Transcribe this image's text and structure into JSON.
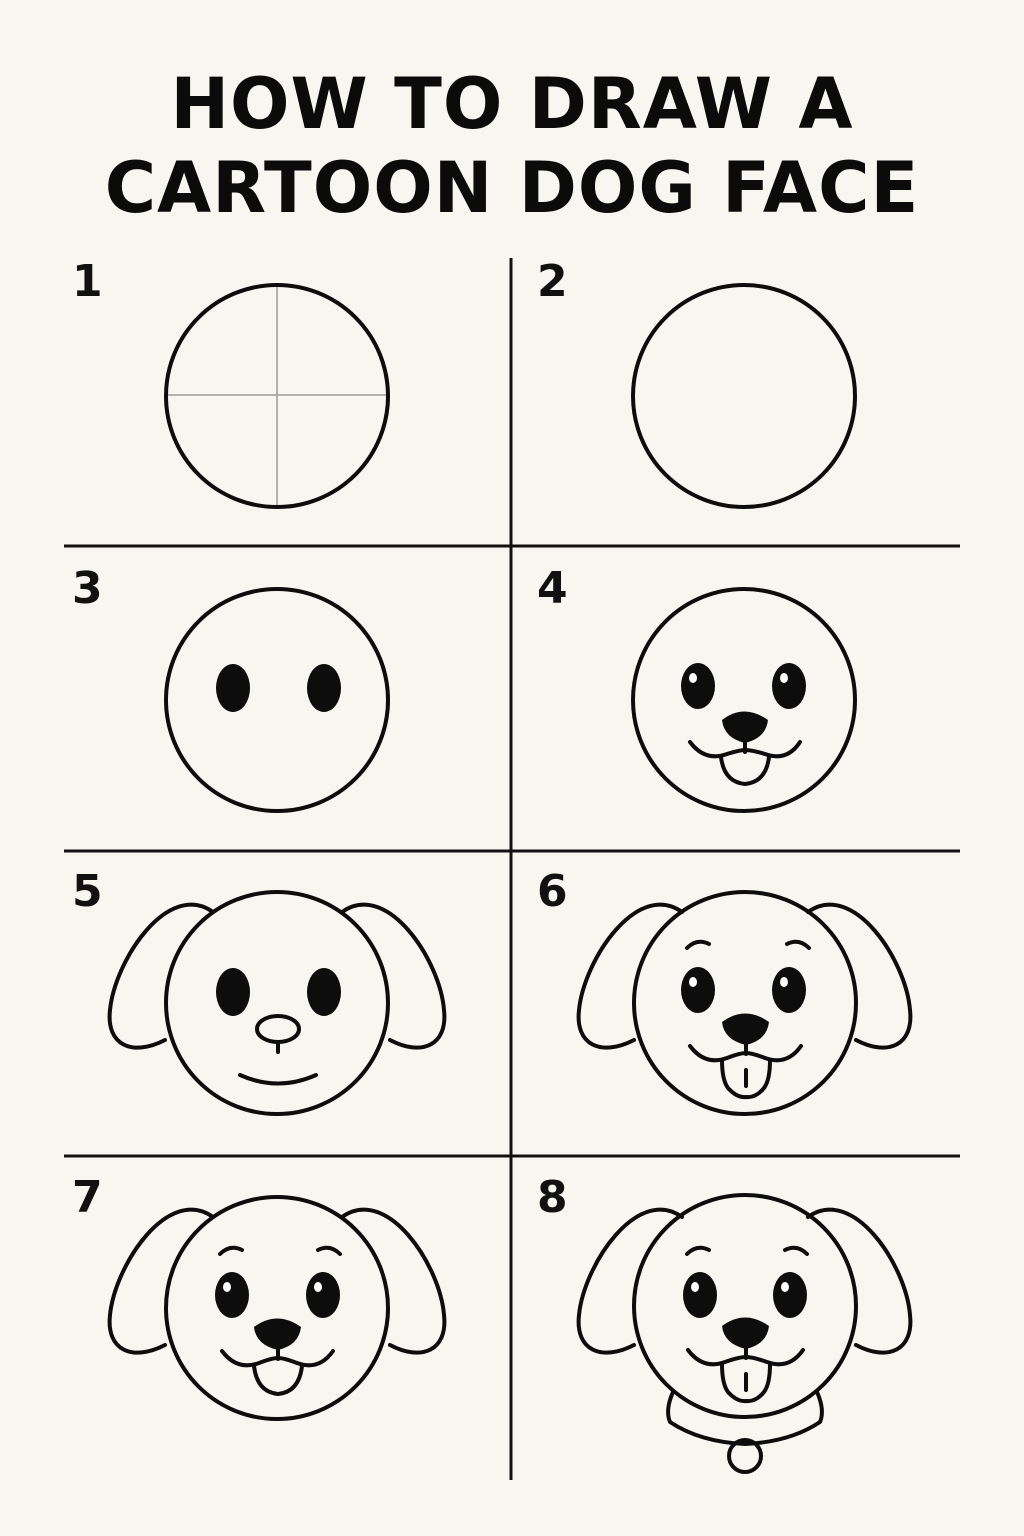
{
  "title": {
    "line1": "HOW TO DRAW A",
    "line2": "CARTOON DOG FACE"
  },
  "steps": [
    "1",
    "2",
    "3",
    "4",
    "5",
    "6",
    "7",
    "8"
  ]
}
